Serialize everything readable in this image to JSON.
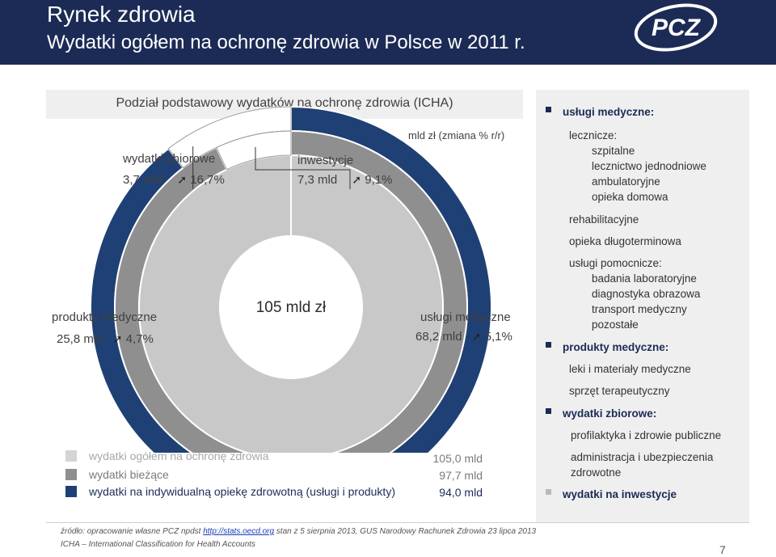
{
  "header": {
    "title": "Rynek zdrowia",
    "subtitle": "Wydatki ogółem na ochronę zdrowia w Polsce w 2011 r.",
    "logo_text": "PCZ"
  },
  "section_title": "Podział podstawowy wydatków na ochronę zdrowia (ICHA)",
  "units_label": "mld zł   (zmiana % r/r)",
  "center_label": "105 mld zł",
  "arrow_glyph": "➚",
  "chart_data": {
    "type": "pie",
    "subtype": "nested-donut",
    "unit": "mld zł",
    "rings": [
      {
        "name": "wydatki ogółem na ochronę zdrowia",
        "total": 105.0,
        "color": "#c8c8c8"
      },
      {
        "name": "wydatki bieżące",
        "total": 97.7,
        "color": "#8f8f8f"
      },
      {
        "name": "wydatki na indywidualną opiekę zdrowotną (usługi i produkty)",
        "total": 94.0,
        "color": "#1f4074"
      }
    ],
    "categories": [
      {
        "name": "usługi medyczne",
        "value": 68.2,
        "change_pct": 5.1
      },
      {
        "name": "produkty medyczne",
        "value": 25.8,
        "change_pct": 4.7
      },
      {
        "name": "wydatki zbiorowe",
        "value": 3.7,
        "change_pct": 16.7
      },
      {
        "name": "inwestycje",
        "value": 7.3,
        "change_pct": 9.1
      }
    ],
    "annotations": {
      "wydatki_zbiorowe": {
        "name": "wydatki zbiorowe",
        "value_text": "3,7 mld",
        "change_text": "16,7%"
      },
      "inwestycje": {
        "name": "inwestycje",
        "value_text": "7,3 mld",
        "change_text": "9,1%"
      },
      "produkty": {
        "name": "produkty medyczne",
        "value_text": "25,8 mld",
        "change_text": "4,7%"
      },
      "uslugi": {
        "name": "usługi medyczne",
        "value_text": "68,2 mld",
        "change_text": "5,1%"
      }
    },
    "legend": [
      {
        "label": "wydatki ogółem na ochronę zdrowia",
        "value_text": "105,0 mld",
        "color": "#c8c8c8"
      },
      {
        "label": "wydatki bieżące",
        "value_text": "97,7 mld",
        "color": "#8f8f8f"
      },
      {
        "label": "wydatki na indywidualną opiekę zdrowotną (usługi i produkty)",
        "value_text": "94,0 mld",
        "color": "#1f4074"
      }
    ]
  },
  "panel": {
    "uslugi_medyczne": "usługi medyczne:",
    "lecznicze": "lecznicze:",
    "szpitalne": "szpitalne",
    "lecznictwo": "lecznictwo jednodniowe",
    "ambulatoryjne": "ambulatoryjne",
    "opieka_domowa": "opieka domowa",
    "rehabilitacyjne": "rehabilitacyjne",
    "opieka_dlugo": "opieka długoterminowa",
    "pomocnicze": "usługi pomocnicze:",
    "badania": "badania laboratoryjne",
    "diagnostyka": "diagnostyka obrazowa",
    "transport": "transport medyczny",
    "pozostale": "pozostałe",
    "produkty_medyczne": "produkty medyczne:",
    "leki": "leki i materiały medyczne",
    "sprzet": "sprzęt terapeutyczny",
    "wydatki_zbiorowe": "wydatki zbiorowe:",
    "profilaktyka": "profilaktyka i zdrowie publiczne",
    "administracja1": "administracja i ubezpieczenia",
    "administracja2": "zdrowotne",
    "wydatki_inwestycje": "wydatki na inwestycje"
  },
  "footer": {
    "source_prefix": "źródło: opracowanie własne PCZ npdst ",
    "source_link": "http://stats.oecd.org",
    "source_suffix": " stan z 5 sierpnia 2013, GUS Narodowy Rachunek Zdrowia 23 lipca 2013",
    "icha": "ICHA – International Classification for Health Accounts",
    "page": "7"
  },
  "colors": {
    "header_bg": "#1c2b56",
    "ring_outer": "#1f4074",
    "ring_middle": "#8f8f8f",
    "ring_inner": "#c8c8c8",
    "panel_bg": "#efefef"
  }
}
